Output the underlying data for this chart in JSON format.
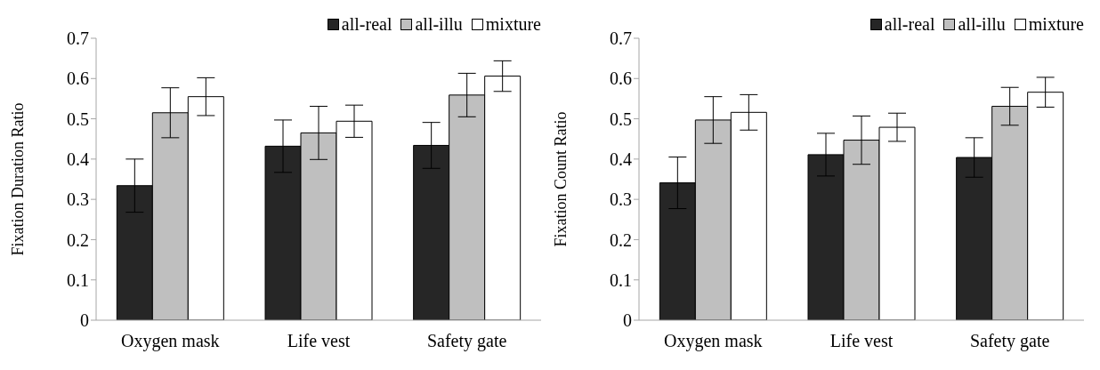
{
  "chart_data": [
    {
      "type": "bar",
      "ylabel": "Fixation Duration Ratio",
      "categories": [
        "Oxygen mask",
        "Life vest",
        "Safety gate"
      ],
      "ylim": [
        0,
        0.7
      ],
      "yticks": [
        0,
        0.1,
        0.2,
        0.3,
        0.4,
        0.5,
        0.6,
        0.7
      ],
      "grid": false,
      "legend": "top right",
      "series": [
        {
          "name": "all-real",
          "color": "#262626",
          "values": [
            0.334,
            0.432,
            0.434
          ],
          "errors": [
            0.066,
            0.065,
            0.057
          ]
        },
        {
          "name": "all-illu",
          "color": "#bfbfbf",
          "values": [
            0.515,
            0.465,
            0.559
          ],
          "errors": [
            0.062,
            0.066,
            0.054
          ]
        },
        {
          "name": "mixture",
          "color": "#ffffff",
          "values": [
            0.555,
            0.494,
            0.606
          ],
          "errors": [
            0.047,
            0.04,
            0.038
          ]
        }
      ]
    },
    {
      "type": "bar",
      "ylabel": "Fixation Count Ratio",
      "categories": [
        "Oxygen mask",
        "Life vest",
        "Safety gate"
      ],
      "ylim": [
        0,
        0.7
      ],
      "yticks": [
        0,
        0.1,
        0.2,
        0.3,
        0.4,
        0.5,
        0.6,
        0.7
      ],
      "grid": false,
      "legend": "top right",
      "series": [
        {
          "name": "all-real",
          "color": "#262626",
          "values": [
            0.341,
            0.411,
            0.404
          ],
          "errors": [
            0.064,
            0.053,
            0.049
          ]
        },
        {
          "name": "all-illu",
          "color": "#bfbfbf",
          "values": [
            0.497,
            0.447,
            0.531
          ],
          "errors": [
            0.058,
            0.06,
            0.047
          ]
        },
        {
          "name": "mixture",
          "color": "#ffffff",
          "values": [
            0.516,
            0.479,
            0.566
          ],
          "errors": [
            0.044,
            0.035,
            0.037
          ]
        }
      ]
    }
  ]
}
